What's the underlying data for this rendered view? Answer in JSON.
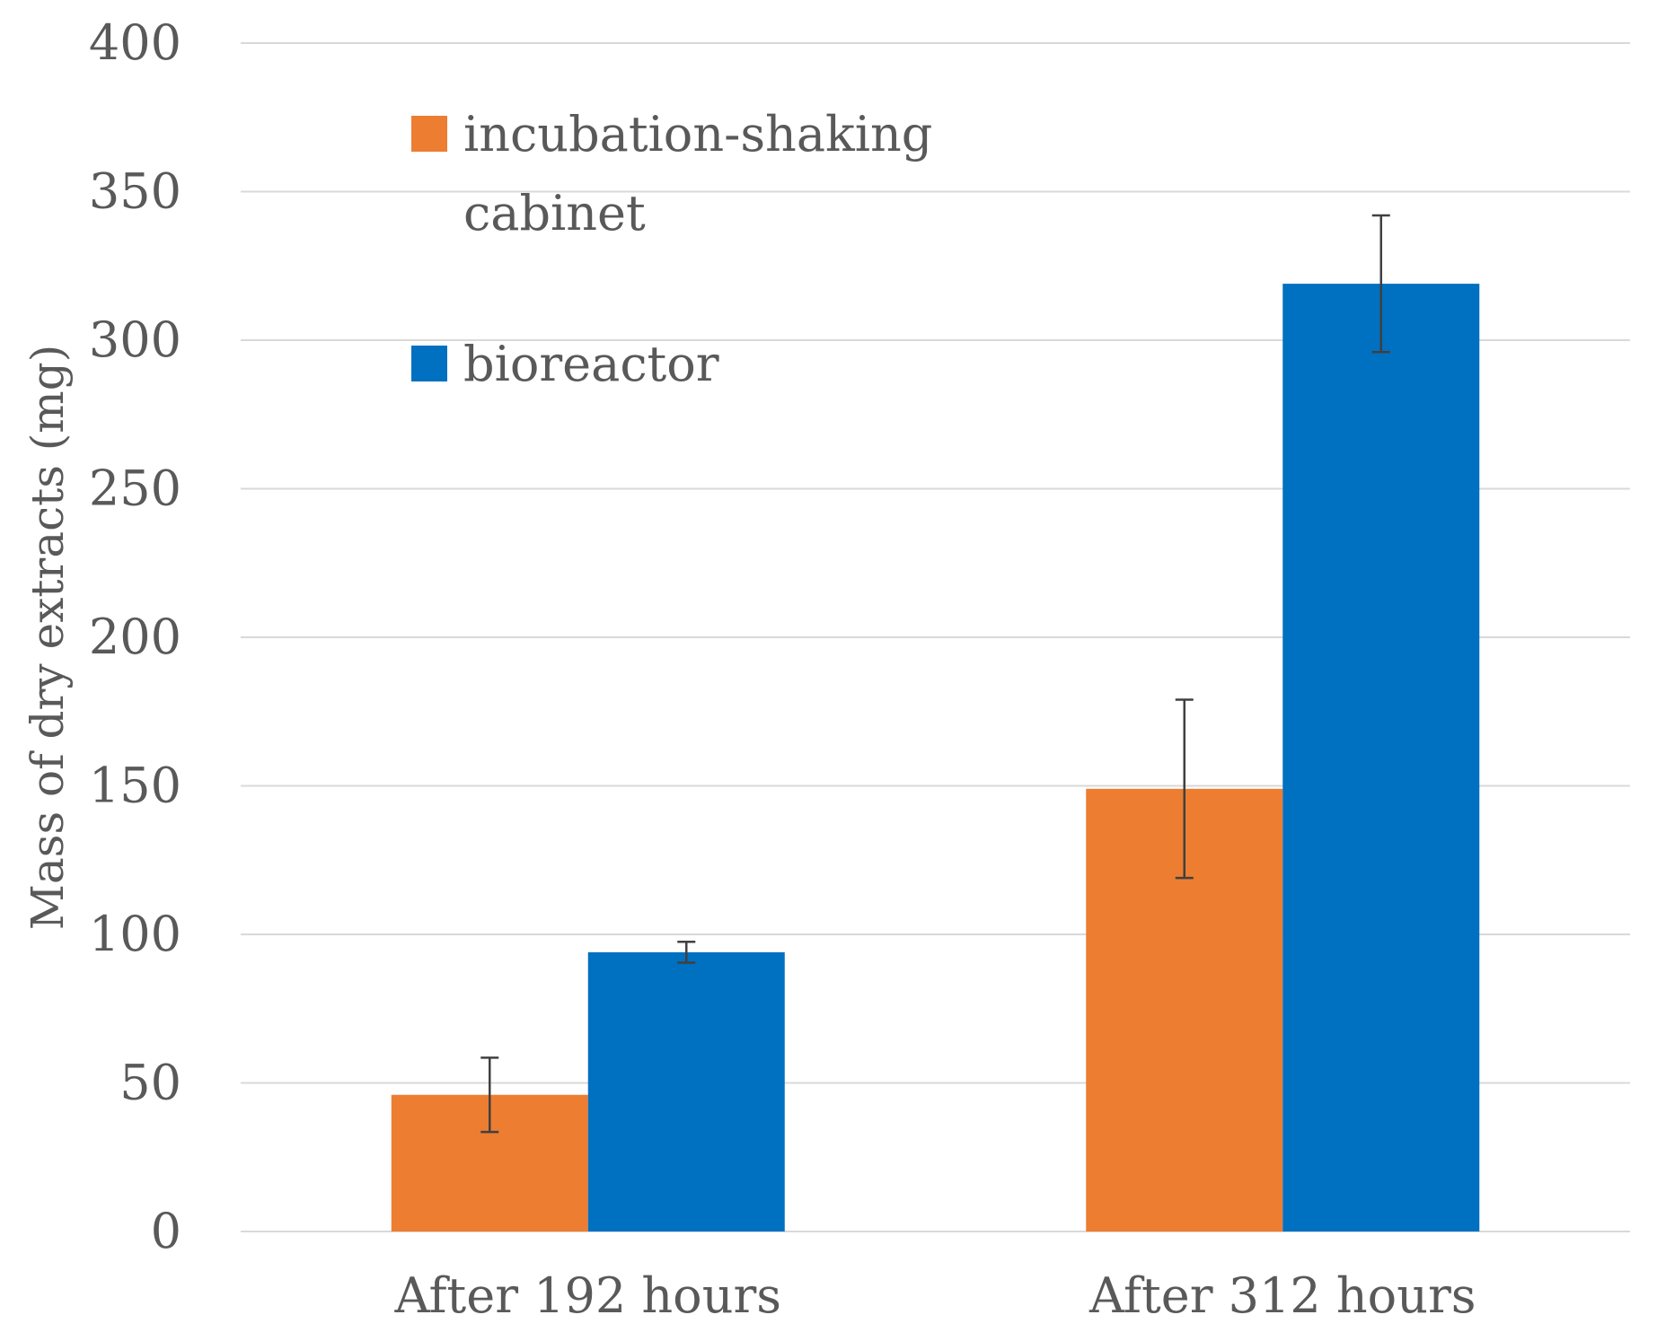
{
  "chart_data": {
    "type": "bar",
    "title": "",
    "xlabel": "",
    "ylabel": "Mass of dry extracts (mg)",
    "categories": [
      "After 192 hours",
      "After 312 hours"
    ],
    "series": [
      {
        "name": "incubation-shaking cabinet",
        "name_lines": [
          "incubation-shaking",
          "cabinet"
        ],
        "color": "#ED7D31",
        "values": [
          46,
          149
        ],
        "errors": [
          12.5,
          30
        ]
      },
      {
        "name": "bioreactor",
        "name_lines": [
          "bioreactor"
        ],
        "color": "#0070C0",
        "values": [
          94,
          319
        ],
        "errors": [
          3.5,
          23
        ]
      }
    ],
    "ylim": [
      0,
      400
    ],
    "yticks": [
      0,
      50,
      100,
      150,
      200,
      250,
      300,
      350,
      400
    ],
    "grid": true,
    "legend_position": "top-left"
  }
}
